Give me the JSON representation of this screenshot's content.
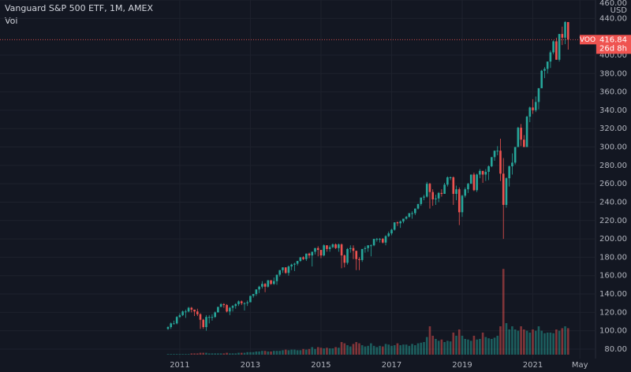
{
  "chart_data": {
    "type": "candlestick",
    "title": "Vanguard S&P 500 ETF, 1M, AMEX",
    "volume_label": "Vol",
    "currency": "USD",
    "symbol": "VOO",
    "countdown": "26d 8h",
    "up_color": "#26a69a",
    "down_color": "#ef5350",
    "ylim": [
      80,
      460
    ],
    "yticks": [
      {
        "value": 80,
        "label": "80.00"
      },
      {
        "value": 100,
        "label": "100.00"
      },
      {
        "value": 120,
        "label": "120.00"
      },
      {
        "value": 140,
        "label": "140.00"
      },
      {
        "value": 160,
        "label": "160.00"
      },
      {
        "value": 180,
        "label": "180.00"
      },
      {
        "value": 200,
        "label": "200.00"
      },
      {
        "value": 220,
        "label": "220.00"
      },
      {
        "value": 240,
        "label": "240.00"
      },
      {
        "value": 260,
        "label": "260.00"
      },
      {
        "value": 280,
        "label": "280.00"
      },
      {
        "value": 300,
        "label": "300.00"
      },
      {
        "value": 320,
        "label": "320.00"
      },
      {
        "value": 340,
        "label": "340.00"
      },
      {
        "value": 360,
        "label": "360.00"
      },
      {
        "value": 380,
        "label": "380.00"
      },
      {
        "value": 400,
        "label": "400.00"
      },
      {
        "value": 440,
        "label": "440.00"
      },
      {
        "value": 460,
        "label": "460.00"
      }
    ],
    "xticks": [
      {
        "value": "2011-01",
        "label": "2011"
      },
      {
        "value": "2013-01",
        "label": "2013"
      },
      {
        "value": "2015-01",
        "label": "2015"
      },
      {
        "value": "2017-01",
        "label": "2017"
      },
      {
        "value": "2019-01",
        "label": "2019"
      },
      {
        "value": "2021-01",
        "label": "2021"
      },
      {
        "value": "2022-05",
        "label": "May"
      }
    ],
    "x": [
      "2010-09",
      "2010-10",
      "2010-11",
      "2010-12",
      "2011-01",
      "2011-02",
      "2011-03",
      "2011-04",
      "2011-05",
      "2011-06",
      "2011-07",
      "2011-08",
      "2011-09",
      "2011-10",
      "2011-11",
      "2011-12",
      "2012-01",
      "2012-02",
      "2012-03",
      "2012-04",
      "2012-05",
      "2012-06",
      "2012-07",
      "2012-08",
      "2012-09",
      "2012-10",
      "2012-11",
      "2012-12",
      "2013-01",
      "2013-02",
      "2013-03",
      "2013-04",
      "2013-05",
      "2013-06",
      "2013-07",
      "2013-08",
      "2013-09",
      "2013-10",
      "2013-11",
      "2013-12",
      "2014-01",
      "2014-02",
      "2014-03",
      "2014-04",
      "2014-05",
      "2014-06",
      "2014-07",
      "2014-08",
      "2014-09",
      "2014-10",
      "2014-11",
      "2014-12",
      "2015-01",
      "2015-02",
      "2015-03",
      "2015-04",
      "2015-05",
      "2015-06",
      "2015-07",
      "2015-08",
      "2015-09",
      "2015-10",
      "2015-11",
      "2015-12",
      "2016-01",
      "2016-02",
      "2016-03",
      "2016-04",
      "2016-05",
      "2016-06",
      "2016-07",
      "2016-08",
      "2016-09",
      "2016-10",
      "2016-11",
      "2016-12",
      "2017-01",
      "2017-02",
      "2017-03",
      "2017-04",
      "2017-05",
      "2017-06",
      "2017-07",
      "2017-08",
      "2017-09",
      "2017-10",
      "2017-11",
      "2017-12",
      "2018-01",
      "2018-02",
      "2018-03",
      "2018-04",
      "2018-05",
      "2018-06",
      "2018-07",
      "2018-08",
      "2018-09",
      "2018-10",
      "2018-11",
      "2018-12",
      "2019-01",
      "2019-02",
      "2019-03",
      "2019-04",
      "2019-05",
      "2019-06",
      "2019-07",
      "2019-08",
      "2019-09",
      "2019-10",
      "2019-11",
      "2019-12",
      "2020-01",
      "2020-02",
      "2020-03",
      "2020-04",
      "2020-05",
      "2020-06",
      "2020-07",
      "2020-08",
      "2020-09",
      "2020-10",
      "2020-11",
      "2020-12",
      "2021-01",
      "2021-02",
      "2021-03",
      "2021-04",
      "2021-05",
      "2021-06",
      "2021-07",
      "2021-08",
      "2021-09",
      "2021-10",
      "2021-11",
      "2021-12",
      "2022-01"
    ],
    "open": [
      102,
      104,
      108,
      108,
      115,
      117,
      121,
      121,
      125,
      123,
      121,
      118,
      112,
      104,
      115,
      115,
      115,
      120,
      126,
      129,
      128,
      121,
      125,
      127,
      129,
      132,
      130,
      130,
      131,
      138,
      140,
      145,
      148,
      151,
      148,
      155,
      151,
      154,
      161,
      166,
      169,
      163,
      170,
      172,
      173,
      176,
      180,
      178,
      184,
      182,
      186,
      190,
      188,
      182,
      193,
      189,
      191,
      194,
      190,
      194,
      182,
      174,
      189,
      190,
      187,
      178,
      177,
      189,
      190,
      193,
      193,
      200,
      200,
      200,
      196,
      203,
      206,
      210,
      218,
      217,
      219,
      222,
      224,
      228,
      228,
      233,
      238,
      245,
      246,
      260,
      251,
      243,
      244,
      250,
      249,
      259,
      267,
      267,
      249,
      254,
      229,
      247,
      254,
      260,
      270,
      253,
      270,
      274,
      270,
      273,
      279,
      289,
      296,
      296,
      271,
      237,
      266,
      279,
      283,
      300,
      321,
      308,
      300,
      333,
      343,
      340,
      349,
      364,
      383,
      385,
      393,
      403,
      415,
      395,
      423,
      419,
      436
    ],
    "high": [
      105,
      109,
      111,
      116,
      119,
      122,
      123,
      126,
      126,
      123,
      124,
      119,
      113,
      117,
      117,
      118,
      121,
      126,
      130,
      130,
      129,
      126,
      128,
      130,
      133,
      133,
      131,
      133,
      138,
      140,
      145,
      149,
      154,
      152,
      155,
      155,
      158,
      161,
      166,
      169,
      169,
      171,
      173,
      174,
      176,
      180,
      181,
      184,
      185,
      186,
      190,
      192,
      188,
      194,
      193,
      193,
      195,
      195,
      195,
      195,
      183,
      190,
      193,
      193,
      187,
      180,
      189,
      192,
      193,
      194,
      200,
      201,
      201,
      201,
      204,
      208,
      211,
      218,
      219,
      220,
      222,
      225,
      228,
      230,
      233,
      238,
      245,
      248,
      262,
      261,
      254,
      248,
      251,
      254,
      261,
      268,
      268,
      268,
      258,
      256,
      248,
      256,
      261,
      270,
      272,
      271,
      276,
      274,
      276,
      280,
      289,
      296,
      301,
      309,
      288,
      267,
      280,
      293,
      300,
      322,
      325,
      313,
      334,
      344,
      352,
      355,
      364,
      384,
      387,
      393,
      405,
      416,
      419,
      423,
      431,
      437,
      435
    ],
    "low": [
      101,
      102,
      107,
      107,
      114,
      116,
      114,
      120,
      120,
      116,
      116,
      102,
      102,
      100,
      108,
      111,
      114,
      120,
      126,
      125,
      120,
      117,
      121,
      124,
      127,
      128,
      122,
      127,
      131,
      136,
      138,
      141,
      146,
      142,
      147,
      150,
      150,
      150,
      159,
      163,
      162,
      160,
      166,
      165,
      171,
      175,
      177,
      176,
      179,
      170,
      183,
      181,
      179,
      181,
      186,
      186,
      190,
      189,
      186,
      168,
      169,
      172,
      185,
      178,
      166,
      166,
      175,
      185,
      186,
      181,
      192,
      197,
      196,
      195,
      193,
      202,
      204,
      209,
      214,
      212,
      217,
      221,
      223,
      222,
      226,
      232,
      236,
      242,
      245,
      233,
      236,
      237,
      240,
      246,
      249,
      257,
      264,
      237,
      242,
      215,
      224,
      245,
      250,
      260,
      252,
      251,
      266,
      261,
      263,
      264,
      278,
      285,
      291,
      263,
      200,
      234,
      257,
      270,
      281,
      300,
      301,
      300,
      302,
      327,
      336,
      338,
      341,
      364,
      375,
      380,
      386,
      401,
      395,
      393,
      411,
      412,
      406
    ],
    "close": [
      104,
      108,
      108,
      115,
      117,
      121,
      121,
      125,
      123,
      121,
      118,
      112,
      104,
      115,
      115,
      115,
      120,
      126,
      129,
      128,
      121,
      125,
      127,
      129,
      132,
      130,
      130,
      131,
      138,
      140,
      145,
      148,
      151,
      148,
      155,
      151,
      154,
      161,
      166,
      169,
      163,
      170,
      172,
      173,
      176,
      180,
      178,
      184,
      182,
      186,
      190,
      188,
      182,
      193,
      189,
      191,
      194,
      190,
      194,
      182,
      174,
      189,
      190,
      187,
      178,
      177,
      189,
      190,
      193,
      193,
      200,
      200,
      200,
      196,
      203,
      206,
      210,
      218,
      217,
      219,
      222,
      224,
      228,
      228,
      233,
      238,
      245,
      246,
      260,
      251,
      243,
      244,
      250,
      249,
      259,
      267,
      267,
      249,
      254,
      229,
      247,
      254,
      260,
      270,
      253,
      270,
      274,
      270,
      273,
      279,
      289,
      296,
      296,
      271,
      237,
      266,
      279,
      283,
      300,
      321,
      308,
      300,
      333,
      343,
      340,
      349,
      364,
      383,
      385,
      393,
      403,
      415,
      395,
      423,
      419,
      436,
      416.84
    ],
    "volume": [
      1,
      1,
      1,
      1,
      1,
      1,
      1,
      1,
      2,
      2,
      2,
      3,
      3,
      3,
      2,
      2,
      2,
      2,
      2,
      2,
      3,
      2,
      2,
      2,
      3,
      3,
      3,
      4,
      4,
      4,
      5,
      5,
      6,
      6,
      5,
      5,
      6,
      6,
      6,
      7,
      8,
      7,
      8,
      8,
      7,
      7,
      9,
      8,
      9,
      12,
      9,
      12,
      11,
      10,
      11,
      10,
      10,
      12,
      11,
      20,
      18,
      15,
      13,
      17,
      20,
      18,
      15,
      13,
      14,
      18,
      14,
      12,
      14,
      13,
      17,
      16,
      14,
      15,
      18,
      15,
      16,
      16,
      14,
      17,
      15,
      18,
      19,
      20,
      28,
      45,
      30,
      25,
      22,
      24,
      20,
      22,
      21,
      35,
      30,
      40,
      30,
      25,
      24,
      22,
      30,
      24,
      25,
      35,
      28,
      26,
      25,
      27,
      30,
      45,
      136,
      50,
      40,
      45,
      40,
      38,
      45,
      40,
      38,
      35,
      40,
      38,
      45,
      38,
      34,
      35,
      35,
      34,
      40,
      38,
      42,
      45,
      42
    ]
  }
}
